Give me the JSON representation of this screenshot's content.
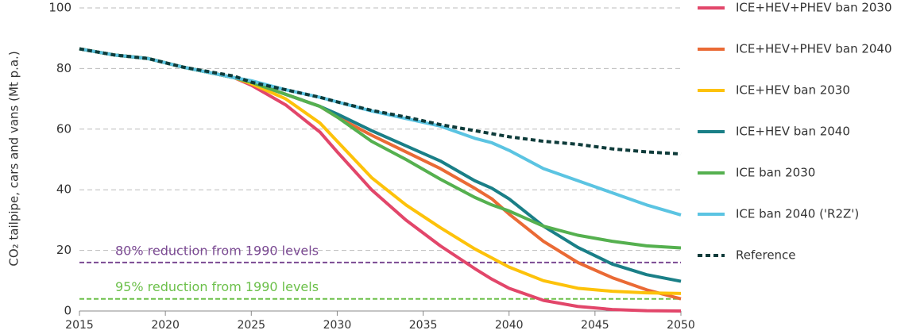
{
  "chart_data": {
    "type": "line",
    "ylabel": "CO₂ tailpipe, cars and vans (Mt p.a.)",
    "x": [
      2015,
      2017,
      2019,
      2021,
      2024,
      2025,
      2027,
      2029,
      2030,
      2032,
      2034,
      2036,
      2038,
      2039,
      2040,
      2042,
      2044,
      2046,
      2048,
      2050
    ],
    "xlim": [
      2015,
      2050
    ],
    "xticks": [
      2015,
      2020,
      2025,
      2030,
      2035,
      2040,
      2045,
      2050
    ],
    "ylim": [
      0,
      100
    ],
    "yticks": [
      0,
      20,
      40,
      60,
      80,
      100
    ],
    "grid": true,
    "legend": "right",
    "series": [
      {
        "name": "ICE+HEV+PHEV ban 2030",
        "color": "#e2466a",
        "values": [
          86.5,
          84.5,
          83.3,
          80.5,
          77,
          74.5,
          68,
          59,
          52.5,
          40,
          30,
          21.5,
          14,
          10.5,
          7.5,
          3.5,
          1.5,
          0.5,
          0.1,
          0
        ]
      },
      {
        "name": "ICE+HEV+PHEV ban 2040",
        "color": "#ea6a35",
        "values": [
          86.5,
          84.5,
          83.3,
          80.5,
          77,
          75.5,
          71.5,
          67.5,
          64,
          58,
          52.5,
          47,
          40.5,
          37,
          32,
          23,
          16,
          11,
          7,
          4
        ]
      },
      {
        "name": "ICE+HEV ban 2030",
        "color": "#fdc20a",
        "values": [
          86.5,
          84.5,
          83.3,
          80.5,
          77,
          75,
          70,
          62,
          56,
          44,
          35,
          27.5,
          20.5,
          17.5,
          14.5,
          10,
          7.5,
          6.5,
          6,
          5.8
        ]
      },
      {
        "name": "ICE+HEV ban 2040",
        "color": "#1a7f87",
        "values": [
          86.5,
          84.5,
          83.3,
          80.5,
          77,
          75.5,
          71.5,
          67.5,
          65,
          59.5,
          54.5,
          49.5,
          43,
          40.5,
          37,
          28,
          21,
          15.5,
          12,
          9.8
        ]
      },
      {
        "name": "ICE ban 2030",
        "color": "#55b04f",
        "values": [
          86.5,
          84.5,
          83.3,
          80.5,
          77,
          75.5,
          71.5,
          67.5,
          64,
          56,
          50,
          43.5,
          37.5,
          35,
          33,
          28,
          25,
          23,
          21.5,
          20.8
        ]
      },
      {
        "name": "ICE ban 2040 ('R2Z')",
        "color": "#5bc4e2",
        "values": [
          86.5,
          84.5,
          83.3,
          80.5,
          77,
          76,
          73,
          70.5,
          69,
          66,
          63.5,
          61,
          57,
          55.5,
          53,
          47,
          43,
          39,
          35,
          31.7
        ]
      },
      {
        "name": "Reference",
        "color": "#0e3b3a",
        "style": "dashed",
        "values": [
          86.5,
          84.5,
          83.3,
          80.5,
          77.5,
          75.5,
          73,
          70.5,
          69,
          66.2,
          64,
          61.5,
          59.5,
          58.5,
          57.5,
          56,
          55,
          53.5,
          52.5,
          51.8
        ]
      }
    ],
    "reference_lines": [
      {
        "value": 16,
        "label": "80% reduction from 1990 levels",
        "color": "#7b4a93"
      },
      {
        "value": 4,
        "label": "95% reduction from 1990 levels",
        "color": "#6cc04a"
      }
    ]
  }
}
